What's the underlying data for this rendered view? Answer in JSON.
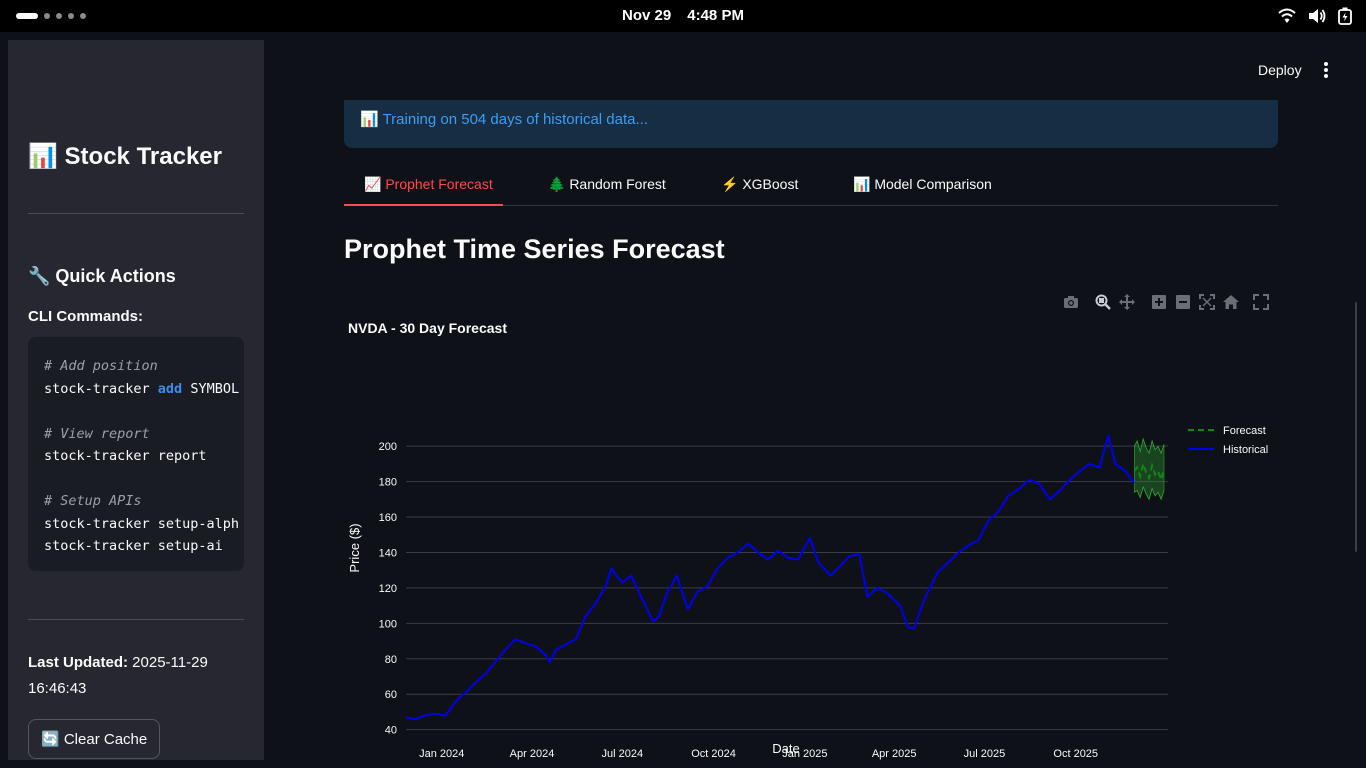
{
  "os": {
    "date": "Nov 29",
    "time": "4:48 PM",
    "icons": [
      "wifi-icon",
      "volume-icon",
      "battery-icon"
    ]
  },
  "sidebar": {
    "title": "📊 Stock Tracker",
    "quick_actions": "🔧 Quick Actions",
    "cli_label": "CLI Commands:",
    "code": [
      {
        "comment": "# Add position"
      },
      {
        "cmd": "stock-tracker ",
        "kw": "add",
        "rest": " SYMBOL"
      },
      {
        "blank": true
      },
      {
        "comment": "# View report"
      },
      {
        "cmd": "stock-tracker report"
      },
      {
        "blank": true
      },
      {
        "comment": "# Setup APIs"
      },
      {
        "cmd": "stock-tracker setup-alph"
      },
      {
        "cmd": "stock-tracker setup-ai"
      }
    ],
    "last_updated_label": "Last Updated:",
    "last_updated_value": " 2025-11-29 16:46:43",
    "clear_cache": "🔄 Clear Cache"
  },
  "header": {
    "deploy": "Deploy"
  },
  "main": {
    "info_message": "📊 Training on 504 days of historical data...",
    "tabs": [
      {
        "label": "📈 Prophet Forecast",
        "active": true
      },
      {
        "label": "🌲 Random Forest",
        "active": false
      },
      {
        "label": "⚡ XGBoost",
        "active": false
      },
      {
        "label": "📊 Model Comparison",
        "active": false
      }
    ],
    "section_title": "Prophet Time Series Forecast",
    "modebar_icons": [
      "camera-icon",
      "zoom-icon",
      "pan-icon",
      "zoom-in-icon",
      "zoom-out-icon",
      "autoscale-icon",
      "home-icon",
      "fullscreen-icon"
    ]
  },
  "chart_data": {
    "type": "line",
    "title": "NVDA - 30 Day Forecast",
    "xlabel": "Date",
    "ylabel": "Price ($)",
    "ylim": [
      37,
      208
    ],
    "yticks": [
      40,
      60,
      80,
      100,
      120,
      140,
      160,
      180,
      200
    ],
    "xrange": [
      "2023-11-26",
      "2026-01-02"
    ],
    "xticks": [
      {
        "date": "2024-01-01",
        "label": "Jan 2024"
      },
      {
        "date": "2024-04-01",
        "label": "Apr 2024"
      },
      {
        "date": "2024-07-01",
        "label": "Jul 2024"
      },
      {
        "date": "2024-10-01",
        "label": "Oct 2024"
      },
      {
        "date": "2025-01-01",
        "label": "Jan 2025"
      },
      {
        "date": "2025-04-01",
        "label": "Apr 2025"
      },
      {
        "date": "2025-07-01",
        "label": "Jul 2025"
      },
      {
        "date": "2025-10-01",
        "label": "Oct 2025"
      }
    ],
    "grid": true,
    "legend_position": "top-right",
    "colors": {
      "historical": "#0000ee",
      "forecast": "#118811",
      "band": "#2fa32f"
    },
    "series": [
      {
        "name": "Historical",
        "style": "solid",
        "x": [
          "2023-11-26",
          "2023-12-05",
          "2023-12-15",
          "2023-12-25",
          "2024-01-05",
          "2024-01-15",
          "2024-01-25",
          "2024-02-05",
          "2024-02-15",
          "2024-02-25",
          "2024-03-05",
          "2024-03-15",
          "2024-03-25",
          "2024-04-05",
          "2024-04-15",
          "2024-04-19",
          "2024-04-25",
          "2024-05-05",
          "2024-05-15",
          "2024-05-25",
          "2024-06-05",
          "2024-06-15",
          "2024-06-20",
          "2024-06-25",
          "2024-07-01",
          "2024-07-10",
          "2024-07-20",
          "2024-08-01",
          "2024-08-07",
          "2024-08-15",
          "2024-08-25",
          "2024-09-05",
          "2024-09-15",
          "2024-09-25",
          "2024-10-05",
          "2024-10-15",
          "2024-10-25",
          "2024-11-05",
          "2024-11-15",
          "2024-11-25",
          "2024-12-05",
          "2024-12-15",
          "2024-12-25",
          "2025-01-06",
          "2025-01-15",
          "2025-01-27",
          "2025-02-05",
          "2025-02-15",
          "2025-02-25",
          "2025-03-05",
          "2025-03-15",
          "2025-03-25",
          "2025-04-07",
          "2025-04-15",
          "2025-04-21",
          "2025-05-01",
          "2025-05-15",
          "2025-05-25",
          "2025-06-05",
          "2025-06-15",
          "2025-06-25",
          "2025-07-05",
          "2025-07-15",
          "2025-07-25",
          "2025-08-05",
          "2025-08-15",
          "2025-08-25",
          "2025-09-05",
          "2025-09-15",
          "2025-09-25",
          "2025-10-05",
          "2025-10-15",
          "2025-10-25",
          "2025-11-03",
          "2025-11-10",
          "2025-11-20",
          "2025-11-29"
        ],
        "values": [
          47,
          46,
          48,
          49,
          48,
          56,
          61,
          67,
          72,
          79,
          85,
          91,
          89,
          87,
          82,
          78,
          85,
          88,
          91,
          104,
          112,
          122,
          131,
          127,
          123,
          127,
          115,
          101,
          104,
          117,
          127,
          108,
          118,
          121,
          131,
          137,
          140,
          145,
          140,
          136,
          141,
          137,
          136,
          148,
          134,
          127,
          132,
          138,
          139,
          115,
          120,
          117,
          110,
          98,
          97,
          113,
          129,
          134,
          140,
          144,
          147,
          158,
          163,
          172,
          176,
          181,
          179,
          170,
          175,
          181,
          186,
          190,
          188,
          206,
          190,
          186,
          179
        ]
      },
      {
        "name": "Forecast",
        "style": "dashed",
        "x": [
          "2025-11-29",
          "2025-12-02",
          "2025-12-05",
          "2025-12-08",
          "2025-12-11",
          "2025-12-14",
          "2025-12-17",
          "2025-12-20",
          "2025-12-23",
          "2025-12-26",
          "2025-12-29"
        ],
        "values": [
          186,
          188,
          183,
          190,
          185,
          182,
          189,
          184,
          186,
          181,
          187
        ],
        "band_low": [
          174,
          175,
          171,
          177,
          173,
          170,
          176,
          172,
          174,
          170,
          175
        ],
        "band_high": [
          200,
          203,
          197,
          204,
          199,
          196,
          203,
          198,
          200,
          196,
          201
        ]
      }
    ]
  }
}
